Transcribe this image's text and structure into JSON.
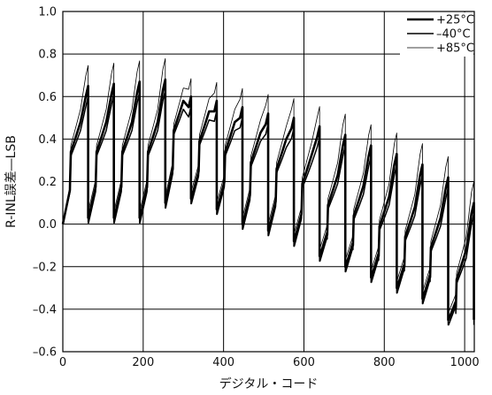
{
  "chart_data": {
    "type": "line",
    "title": "",
    "xlabel": "デジタル・コード",
    "ylabel": "R-INL誤差―LSB",
    "xlim": [
      0,
      1024
    ],
    "ylim": [
      -0.6,
      1.0
    ],
    "xticks": [
      0,
      200,
      400,
      600,
      800,
      1000
    ],
    "xtick_labels": [
      "0",
      "200",
      "400",
      "600",
      "800",
      "1000"
    ],
    "yticks": [
      1.0,
      0.8,
      0.6,
      0.4,
      0.2,
      0.0,
      -0.2,
      -0.4,
      -0.6
    ],
    "ytick_labels": [
      "1.0",
      "0.8",
      "0.6",
      "0.4",
      "0.2",
      "0.0",
      "–0.2",
      "–0.4",
      "–0.6"
    ],
    "grid": true,
    "legend_position": "top-right",
    "pattern": {
      "period": 64,
      "teeth": [
        {
          "start": 0,
          "mid": 0.2,
          "peak": 0.65,
          "end": 0.03
        },
        {
          "start": 64,
          "mid": 0.2,
          "peak": 0.66,
          "end": 0.03
        },
        {
          "start": 128,
          "mid": 0.2,
          "peak": 0.67,
          "end": 0.03
        },
        {
          "start": 192,
          "mid": 0.2,
          "peak": 0.68,
          "end": 0.03
        },
        {
          "start": 256,
          "mid": 0.3,
          "peak": 0.6,
          "end": 0.1
        },
        {
          "start": 320,
          "mid": 0.25,
          "peak": 0.58,
          "end": 0.12
        },
        {
          "start": 384,
          "mid": 0.2,
          "peak": 0.55,
          "end": 0.07
        },
        {
          "start": 448,
          "mid": 0.15,
          "peak": 0.52,
          "end": 0.0
        },
        {
          "start": 512,
          "mid": 0.12,
          "peak": 0.5,
          "end": -0.03
        },
        {
          "start": 576,
          "mid": 0.05,
          "peak": 0.46,
          "end": -0.08
        },
        {
          "start": 640,
          "mid": -0.05,
          "peak": 0.42,
          "end": -0.15
        },
        {
          "start": 704,
          "mid": -0.1,
          "peak": 0.37,
          "end": -0.2
        },
        {
          "start": 768,
          "mid": -0.15,
          "peak": 0.33,
          "end": -0.25
        },
        {
          "start": 832,
          "mid": -0.2,
          "peak": 0.28,
          "end": -0.3
        },
        {
          "start": 896,
          "mid": -0.25,
          "peak": 0.22,
          "end": -0.35
        },
        {
          "start": 960,
          "mid": -0.4,
          "peak": 0.1,
          "end": -0.45
        }
      ]
    },
    "series": [
      {
        "name": "+25°C",
        "line_width": 2.6,
        "offset": 0.0,
        "ramp": 1.0,
        "color": "#000000"
      },
      {
        "name": "–40°C",
        "line_width": 1.5,
        "offset": -0.04,
        "ramp": 0.98,
        "color": "#000000"
      },
      {
        "name": "+85°C",
        "line_width": 0.8,
        "offset": 0.06,
        "ramp": 1.08,
        "color": "#000000"
      }
    ]
  }
}
